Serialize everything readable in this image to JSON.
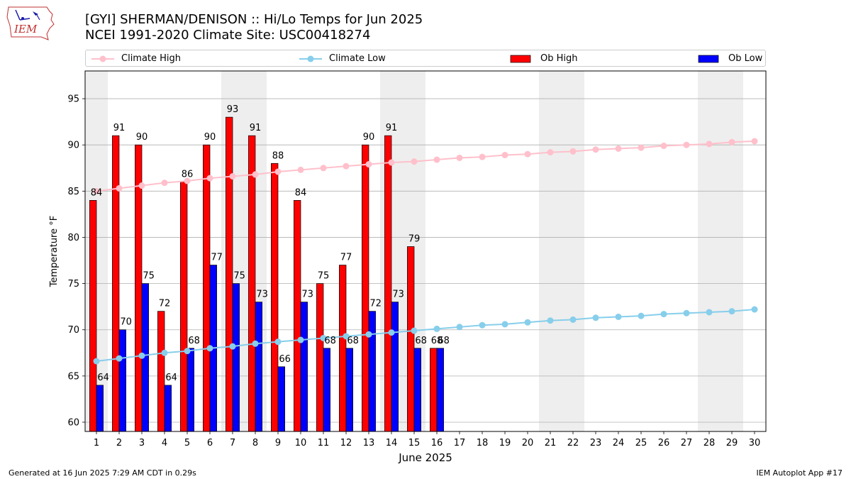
{
  "title": "[GYI] SHERMAN/DENISON :: Hi/Lo Temps for Jun 2025",
  "subtitle": "NCEI 1991-2020 Climate Site: USC00418274",
  "footer_left": "Generated at 16 Jun 2025 7:29 AM CDT in 0.29s",
  "footer_right": "IEM Autoplot App #17",
  "logo_text": "IEM",
  "colors": {
    "climate_high": "#ffc0cb",
    "climate_low": "#87ceeb",
    "ob_high": "#ff0000",
    "ob_low": "#0000ff",
    "weekend_shade": "#eeeeee",
    "grid": "#b0b0b0"
  },
  "legend": [
    {
      "label": "Climate High",
      "type": "line",
      "color": "#ffc0cb"
    },
    {
      "label": "Climate Low",
      "type": "line",
      "color": "#87ceeb"
    },
    {
      "label": "Ob High",
      "type": "bar",
      "color": "#ff0000"
    },
    {
      "label": "Ob Low",
      "type": "bar",
      "color": "#0000ff"
    }
  ],
  "chart_data": {
    "type": "bar",
    "xlabel": "June 2025",
    "ylabel": "Temperature °F",
    "xlim": [
      0.5,
      30.5
    ],
    "ylim": [
      59,
      98
    ],
    "yticks": [
      60,
      65,
      70,
      75,
      80,
      85,
      90,
      95
    ],
    "grid": "horizontal",
    "legend_position": "top",
    "days": [
      1,
      2,
      3,
      4,
      5,
      6,
      7,
      8,
      9,
      10,
      11,
      12,
      13,
      14,
      15,
      16,
      17,
      18,
      19,
      20,
      21,
      22,
      23,
      24,
      25,
      26,
      27,
      28,
      29,
      30
    ],
    "shaded_weekends": [
      [
        1,
        1
      ],
      [
        7,
        8
      ],
      [
        14,
        15
      ],
      [
        21,
        22
      ],
      [
        28,
        29
      ]
    ],
    "series": [
      {
        "name": "Ob High",
        "type": "bar",
        "values": [
          84,
          91,
          90,
          72,
          86,
          90,
          93,
          91,
          88,
          84,
          75,
          77,
          90,
          91,
          79,
          68
        ]
      },
      {
        "name": "Ob Low",
        "type": "bar",
        "values": [
          64,
          70,
          75,
          64,
          68,
          77,
          75,
          73,
          66,
          73,
          68,
          68,
          72,
          73,
          68,
          68
        ]
      },
      {
        "name": "Climate High",
        "type": "line",
        "values": [
          85.0,
          85.3,
          85.6,
          85.9,
          86.1,
          86.4,
          86.6,
          86.8,
          87.1,
          87.3,
          87.5,
          87.7,
          87.9,
          88.1,
          88.2,
          88.4,
          88.6,
          88.7,
          88.9,
          89.0,
          89.2,
          89.3,
          89.5,
          89.6,
          89.7,
          89.9,
          90.0,
          90.1,
          90.3,
          90.4
        ]
      },
      {
        "name": "Climate Low",
        "type": "line",
        "values": [
          66.6,
          66.9,
          67.2,
          67.5,
          67.7,
          68.0,
          68.2,
          68.5,
          68.7,
          68.9,
          69.1,
          69.3,
          69.5,
          69.7,
          69.9,
          70.1,
          70.3,
          70.5,
          70.6,
          70.8,
          71.0,
          71.1,
          71.3,
          71.4,
          71.5,
          71.7,
          71.8,
          71.9,
          72.0,
          72.2
        ]
      }
    ]
  }
}
